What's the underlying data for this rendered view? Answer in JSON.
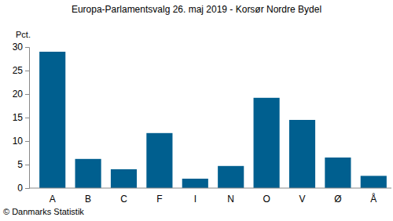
{
  "chart_data": {
    "type": "bar",
    "title": "Europa-Parlamentsvalg 26. maj 2019 - Korsør Nordre Bydel",
    "y_label": "Pct.",
    "annotations": [
      "© Danmarks Statistik"
    ],
    "categories": [
      "A",
      "B",
      "C",
      "F",
      "I",
      "N",
      "O",
      "V",
      "Ø",
      "Å"
    ],
    "values": [
      29.0,
      6.2,
      4.0,
      11.7,
      2.0,
      4.7,
      19.2,
      14.5,
      6.5,
      2.6
    ],
    "color": "#005f8f",
    "ylim": [
      0,
      30
    ],
    "yticks": [
      0,
      5,
      10,
      15,
      20,
      25,
      30
    ],
    "grid": false
  }
}
